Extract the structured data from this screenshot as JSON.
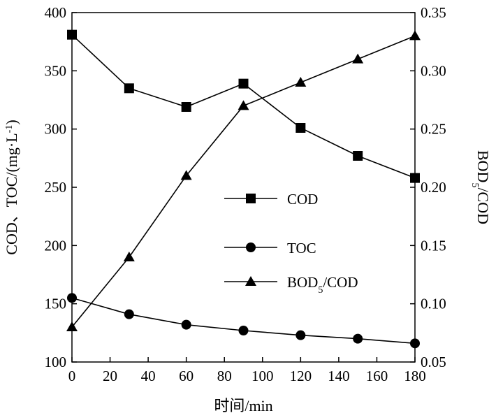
{
  "chart_data": {
    "type": "line",
    "xlabel": "时间/min",
    "ylabel_left": {
      "main": "COD、TOC/(mg·L",
      "sup": "-1",
      "close": ")"
    },
    "ylabel_right": {
      "main": "BOD",
      "sub": "5",
      "rest": "/COD"
    },
    "x": [
      0,
      30,
      60,
      90,
      120,
      150,
      180
    ],
    "x_ticks": [
      "0",
      "20",
      "40",
      "60",
      "80",
      "100",
      "120",
      "140",
      "160",
      "180"
    ],
    "xlim": [
      0,
      180
    ],
    "ylim_left": [
      100,
      400
    ],
    "y_ticks_left": [
      "100",
      "150",
      "200",
      "250",
      "300",
      "350",
      "400"
    ],
    "ylim_right": [
      0.05,
      0.35
    ],
    "y_ticks_right": [
      "0.05",
      "0.10",
      "0.15",
      "0.20",
      "0.25",
      "0.30",
      "0.35"
    ],
    "grid": false,
    "legend_position": "center-right",
    "series": [
      {
        "name": "COD",
        "marker": "square",
        "axis": "left",
        "values": [
          381,
          335,
          319,
          339,
          301,
          277,
          258
        ]
      },
      {
        "name": "TOC",
        "marker": "circle",
        "axis": "left",
        "values": [
          155,
          141,
          132,
          127,
          123,
          120,
          116
        ]
      },
      {
        "name": "BOD5/COD",
        "legend": {
          "main": "BOD",
          "sub": "5",
          "rest": "/COD"
        },
        "marker": "triangle",
        "axis": "right",
        "values": [
          0.08,
          0.14,
          0.21,
          0.27,
          0.29,
          0.31,
          0.33
        ]
      }
    ]
  }
}
